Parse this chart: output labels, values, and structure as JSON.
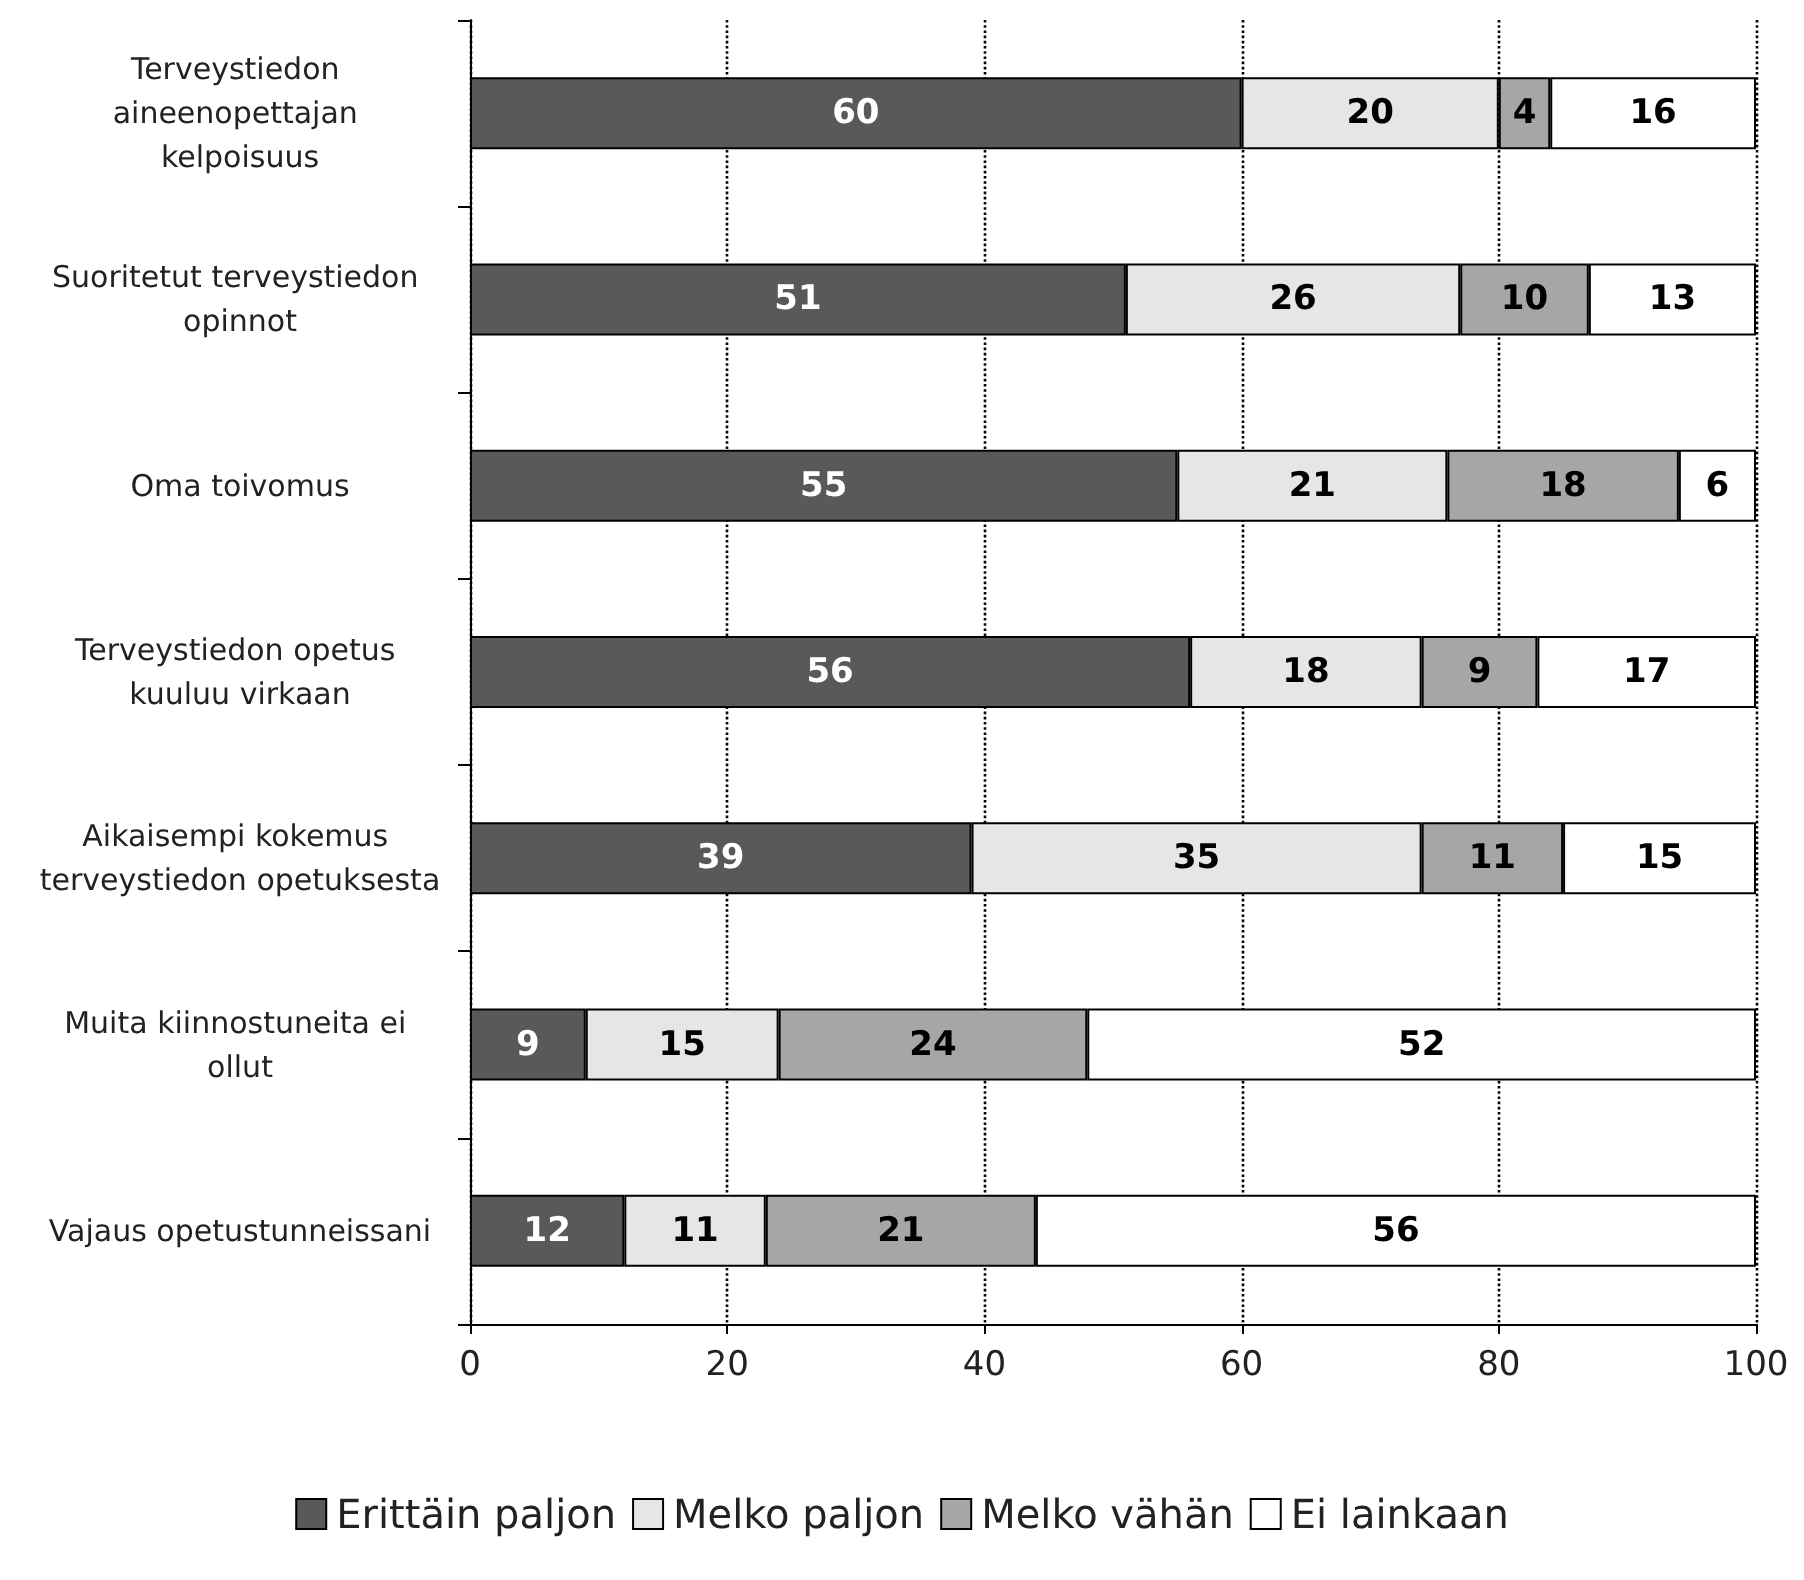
{
  "chart_data": {
    "type": "bar",
    "orientation": "horizontal",
    "stacked": true,
    "data_labels": true,
    "grid": "x",
    "legend": "bottom",
    "categories": [
      "Terveystiedon aineenopettajan kelpoisuus",
      "Suoritetut terveystiedon opinnot",
      "Oma toivomus",
      "Terveystiedon opetus kuuluu virkaan",
      "Aikaisempi kokemus terveystiedon opetuksesta",
      "Muita kiinnostuneita ei ollut",
      "Vajaus opetustunneissani"
    ],
    "series": [
      {
        "name": "Erittäin paljon",
        "color": "#595959",
        "values": [
          60,
          51,
          55,
          56,
          39,
          9,
          12
        ]
      },
      {
        "name": "Melko paljon",
        "color": "#e6e6e6",
        "values": [
          20,
          26,
          21,
          18,
          35,
          15,
          11
        ]
      },
      {
        "name": "Melko vähän",
        "color": "#a6a6a6",
        "values": [
          4,
          10,
          18,
          9,
          11,
          24,
          21
        ]
      },
      {
        "name": "Ei lainkaan",
        "color": "#ffffff",
        "values": [
          16,
          13,
          6,
          17,
          15,
          52,
          56
        ]
      }
    ],
    "xlim": [
      0,
      100
    ],
    "xticks": [
      0,
      20,
      40,
      60,
      80,
      100
    ]
  }
}
